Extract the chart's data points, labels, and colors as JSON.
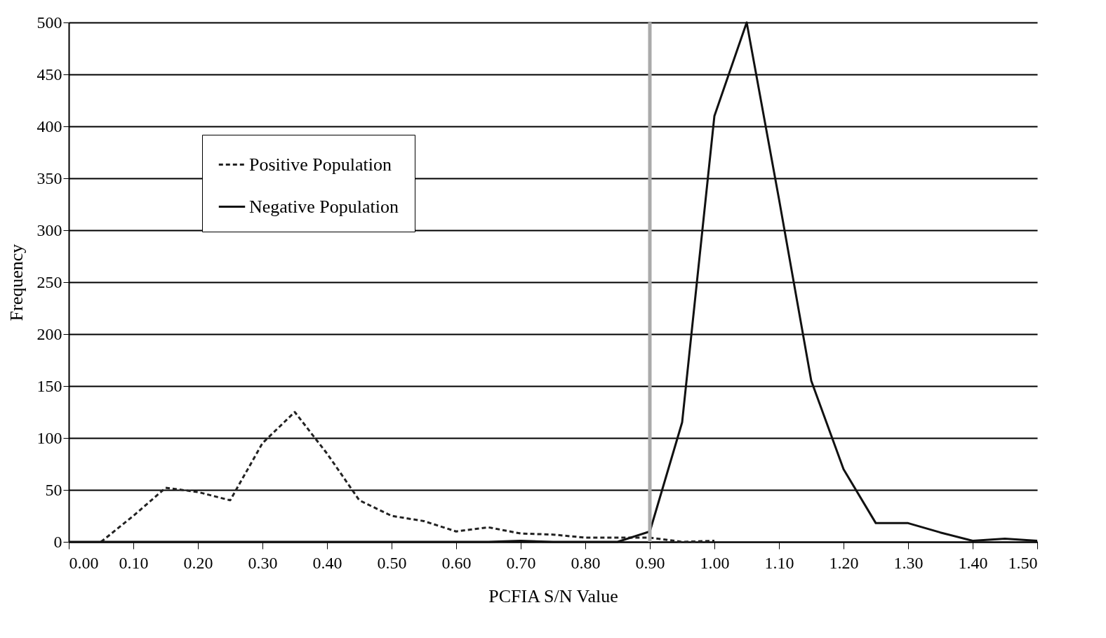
{
  "chart_data": {
    "type": "line",
    "xlabel": "PCFIA S/N Value",
    "ylabel": "Frequency",
    "xlim": [
      0,
      1.5
    ],
    "ylim": [
      0,
      500
    ],
    "xticks": [
      {
        "value": 0,
        "label": "0.00"
      },
      {
        "value": 0.1,
        "label": "0.10"
      },
      {
        "value": 0.2,
        "label": "0.20"
      },
      {
        "value": 0.3,
        "label": "0.30"
      },
      {
        "value": 0.4,
        "label": "0.40"
      },
      {
        "value": 0.5,
        "label": "0.50"
      },
      {
        "value": 0.6,
        "label": "0.60"
      },
      {
        "value": 0.7,
        "label": "0.70"
      },
      {
        "value": 0.8,
        "label": "0.80"
      },
      {
        "value": 0.9,
        "label": "0.90"
      },
      {
        "value": 1,
        "label": "1.00"
      },
      {
        "value": 1.1,
        "label": "1.10"
      },
      {
        "value": 1.2,
        "label": "1.20"
      },
      {
        "value": 1.3,
        "label": "1.30"
      },
      {
        "value": 1.4,
        "label": "1.40"
      },
      {
        "value": 1.5,
        "label": "1.50"
      }
    ],
    "yticks": [
      0,
      50,
      100,
      150,
      200,
      250,
      300,
      350,
      400,
      450,
      500
    ],
    "grid": "y",
    "legend": "top left",
    "marker": "none",
    "series": [
      {
        "name": "Positive Population",
        "color": "#222222",
        "line_style": "dashed",
        "x": [
          0.05,
          0.1,
          0.15,
          0.2,
          0.25,
          0.3,
          0.35,
          0.4,
          0.45,
          0.5,
          0.55,
          0.6,
          0.65,
          0.7,
          0.75,
          0.8,
          0.85,
          0.9,
          0.95,
          1.0
        ],
        "values": [
          0,
          25,
          52,
          48,
          40,
          95,
          125,
          85,
          40,
          25,
          20,
          10,
          14,
          8,
          7,
          4,
          4,
          4,
          0,
          1
        ]
      },
      {
        "name": "Negative Population",
        "color": "#111111",
        "line_style": "solid",
        "x": [
          0,
          0.05,
          0.1,
          0.15,
          0.2,
          0.25,
          0.3,
          0.35,
          0.4,
          0.45,
          0.5,
          0.55,
          0.6,
          0.65,
          0.7,
          0.75,
          0.8,
          0.85,
          0.9,
          0.95,
          1.0,
          1.05,
          1.1,
          1.15,
          1.2,
          1.25,
          1.3,
          1.35,
          1.4,
          1.45,
          1.5
        ],
        "values": [
          0,
          0,
          0,
          0,
          0,
          0,
          0,
          0,
          0,
          0,
          0,
          0,
          0,
          0,
          1,
          0,
          0,
          0,
          10,
          115,
          410,
          500,
          330,
          155,
          70,
          18,
          18,
          9,
          1,
          3,
          1
        ]
      }
    ],
    "ref_lines": [
      {
        "axis": "x",
        "value": 0.9,
        "color": "#aaaaaa"
      }
    ]
  }
}
